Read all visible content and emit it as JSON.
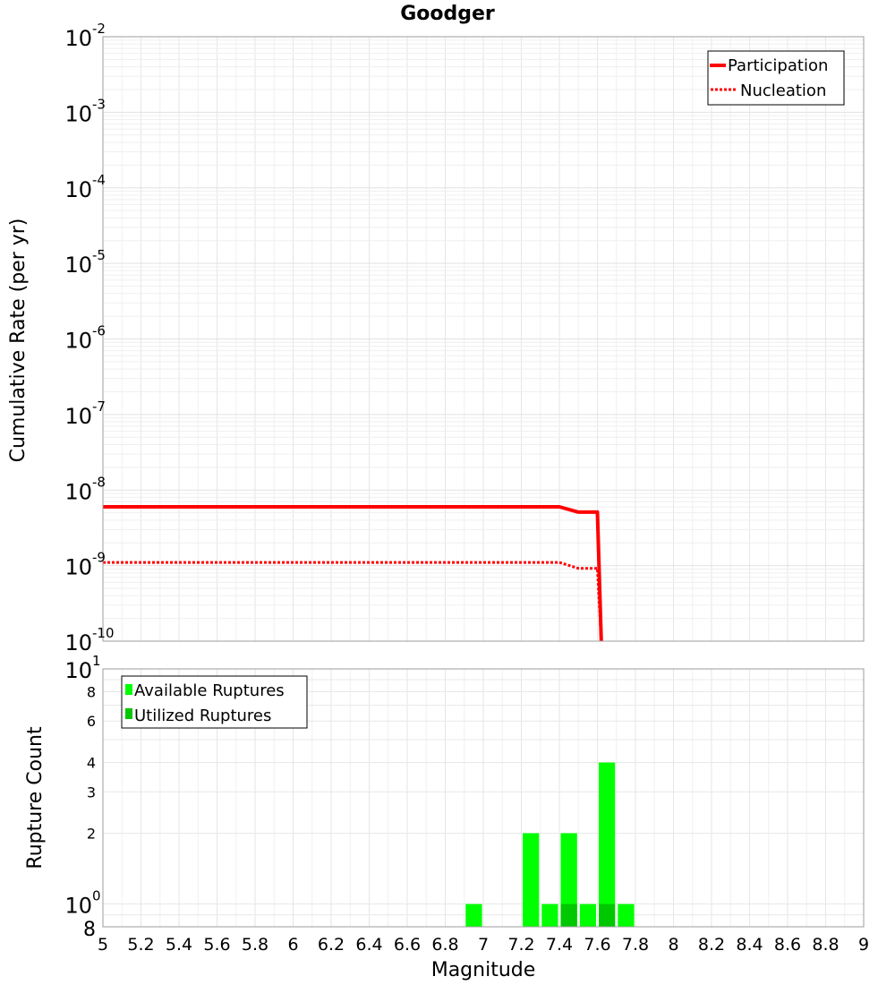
{
  "chart_data": [
    {
      "type": "line",
      "title": "Goodger",
      "xlabel": "",
      "ylabel": "Cumulative Rate (per yr)",
      "x_scale": "linear",
      "y_scale": "log",
      "xlim": [
        5,
        9
      ],
      "ylim": [
        1e-10,
        0.01
      ],
      "grid": true,
      "legend_position": "top-right",
      "y_ticks": [
        {
          "base": "10",
          "exp": "-2"
        },
        {
          "base": "10",
          "exp": "-3"
        },
        {
          "base": "10",
          "exp": "-4"
        },
        {
          "base": "10",
          "exp": "-5"
        },
        {
          "base": "10",
          "exp": "-6"
        },
        {
          "base": "10",
          "exp": "-7"
        },
        {
          "base": "10",
          "exp": "-8"
        },
        {
          "base": "10",
          "exp": "-9"
        },
        {
          "base": "10",
          "exp": "-10"
        }
      ],
      "series": [
        {
          "name": "Participation",
          "style": "solid",
          "color": "#ff0000",
          "x": [
            5.0,
            7.4,
            7.5,
            7.6,
            7.62
          ],
          "y": [
            6e-09,
            6e-09,
            5.1e-09,
            5.1e-09,
            1e-10
          ]
        },
        {
          "name": "Nucleation",
          "style": "dotted",
          "color": "#ff0000",
          "x": [
            5.0,
            7.4,
            7.5,
            7.6,
            7.62
          ],
          "y": [
            1.1e-09,
            1.1e-09,
            9.2e-10,
            9.2e-10,
            1e-10
          ]
        }
      ]
    },
    {
      "type": "bar",
      "xlabel": "Magnitude",
      "ylabel": "Rupture Count",
      "y_scale": "log",
      "xlim": [
        5,
        9
      ],
      "ylim": [
        0.8,
        10
      ],
      "grid": true,
      "legend_position": "top-left",
      "bar_width": 0.1,
      "x_ticks": [
        "5",
        "5.2",
        "5.4",
        "5.6",
        "5.8",
        "6",
        "6.2",
        "6.4",
        "6.6",
        "6.8",
        "7",
        "7.2",
        "7.4",
        "7.6",
        "7.8",
        "8",
        "8.2",
        "8.4",
        "8.6",
        "8.8",
        "9"
      ],
      "y_ticks": [
        {
          "value": 10,
          "base": "10",
          "exp": "1"
        },
        {
          "value": 8,
          "label": "8"
        },
        {
          "value": 6,
          "label": "6"
        },
        {
          "value": 4,
          "label": "4"
        },
        {
          "value": 3,
          "label": "3"
        },
        {
          "value": 2,
          "label": "2"
        },
        {
          "value": 1,
          "base": "10",
          "exp": "0"
        },
        {
          "value": 0.8,
          "label": "8"
        }
      ],
      "series": [
        {
          "name": "Available Ruptures",
          "color": "#00ff00",
          "x": [
            6.95,
            7.25,
            7.35,
            7.45,
            7.55,
            7.65,
            7.75
          ],
          "values": [
            1,
            2,
            1,
            2,
            1,
            4,
            1
          ]
        },
        {
          "name": "Utilized Ruptures",
          "color": "#00c800",
          "x": [
            7.45,
            7.65
          ],
          "values": [
            1,
            1
          ]
        }
      ]
    }
  ]
}
